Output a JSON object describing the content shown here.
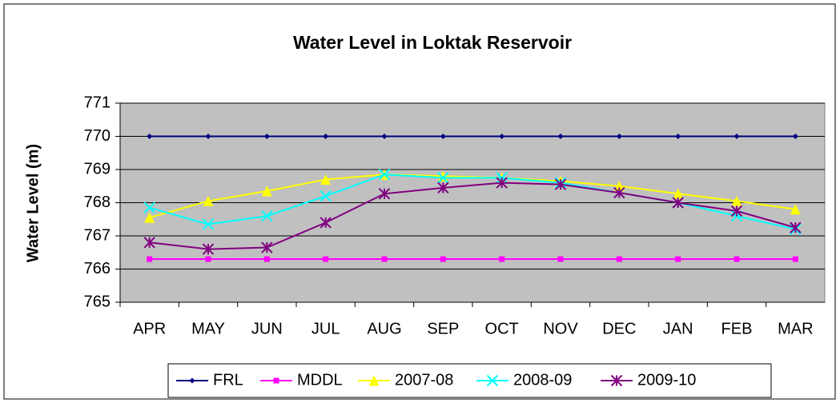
{
  "chart_data": {
    "type": "line",
    "title": "Water Level in Loktak Reservoir",
    "y_label": "Water Level (m)",
    "categories": [
      "APR",
      "MAY",
      "JUN",
      "JUL",
      "AUG",
      "SEP",
      "OCT",
      "NOV",
      "DEC",
      "JAN",
      "FEB",
      "MAR"
    ],
    "ylim": [
      765,
      771
    ],
    "yticks": [
      765,
      766,
      767,
      768,
      769,
      770,
      771
    ],
    "grid": true,
    "legend": "bottom",
    "series": [
      {
        "name": "FRL",
        "color": "#000080",
        "marker": "diamond",
        "values": [
          770,
          770,
          770,
          770,
          770,
          770,
          770,
          770,
          770,
          770,
          770,
          770
        ]
      },
      {
        "name": "MDDL",
        "color": "#ff00ff",
        "marker": "square",
        "values": [
          766.3,
          766.3,
          766.3,
          766.3,
          766.3,
          766.3,
          766.3,
          766.3,
          766.3,
          766.3,
          766.3,
          766.3
        ]
      },
      {
        "name": "2007-08",
        "color": "#ffff00",
        "marker": "triangle",
        "values": [
          767.55,
          768.05,
          768.35,
          768.7,
          768.85,
          768.8,
          768.75,
          768.65,
          768.5,
          768.27,
          768.05,
          767.8
        ]
      },
      {
        "name": "2008-09",
        "color": "#00ffff",
        "marker": "x",
        "values": [
          767.85,
          767.35,
          767.6,
          768.2,
          768.85,
          768.75,
          768.75,
          768.6,
          768.3,
          768.0,
          767.6,
          767.2
        ]
      },
      {
        "name": "2009-10",
        "color": "#800080",
        "marker": "star",
        "values": [
          766.8,
          766.6,
          766.65,
          767.4,
          768.27,
          768.45,
          768.6,
          768.55,
          768.3,
          768.0,
          767.75,
          767.25
        ]
      }
    ]
  }
}
